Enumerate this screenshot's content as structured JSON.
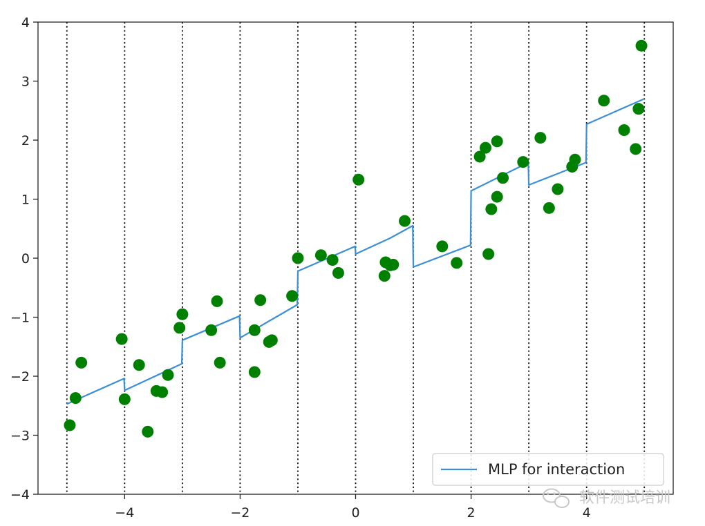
{
  "chart_data": {
    "type": "line+scatter",
    "title": "",
    "xlabel": "",
    "ylabel": "",
    "xlim": [
      -5.5,
      5.5
    ],
    "ylim": [
      -4,
      4
    ],
    "xticks": [
      -4,
      -2,
      0,
      2,
      4
    ],
    "xtick_labels": [
      "−4",
      "−2",
      "0",
      "2",
      "4"
    ],
    "yticks": [
      -4,
      -3,
      -2,
      -1,
      0,
      1,
      2,
      3,
      4
    ],
    "ytick_labels": [
      "−4",
      "−3",
      "−2",
      "−1",
      "0",
      "1",
      "2",
      "3",
      "4"
    ],
    "grid": false,
    "bin_edges": [
      -5,
      -4,
      -3,
      -2,
      -1,
      0,
      1,
      2,
      3,
      4,
      5
    ],
    "bin_edge_style": "dotted black vertical lines",
    "legend": {
      "position": "lower-right",
      "entries": [
        "MLP for interaction"
      ]
    },
    "series": [
      {
        "name": "MLP for interaction",
        "type": "line",
        "color": "#3c8fd6",
        "x": [
          -5.0,
          -4.01,
          -4.0,
          -3.01,
          -3.0,
          -2.01,
          -2.0,
          -1.01,
          -1.0,
          -0.01,
          0.0,
          0.6,
          0.99,
          1.0,
          1.99,
          2.0,
          2.99,
          3.0,
          3.99,
          4.0,
          5.0
        ],
        "y": [
          -2.47,
          -2.04,
          -2.24,
          -1.79,
          -1.39,
          -0.98,
          -1.35,
          -0.79,
          -0.22,
          0.2,
          0.07,
          0.34,
          0.55,
          -0.15,
          0.22,
          1.14,
          1.62,
          1.24,
          1.62,
          2.27,
          2.7
        ]
      },
      {
        "type": "scatter",
        "color": "#008000",
        "points": [
          [
            -4.95,
            -2.83
          ],
          [
            -4.85,
            -2.37
          ],
          [
            -4.75,
            -1.77
          ],
          [
            -4.05,
            -1.37
          ],
          [
            -4.0,
            -2.39
          ],
          [
            -3.75,
            -1.81
          ],
          [
            -3.6,
            -2.94
          ],
          [
            -3.45,
            -2.25
          ],
          [
            -3.35,
            -2.27
          ],
          [
            -3.25,
            -1.98
          ],
          [
            -3.05,
            -1.18
          ],
          [
            -3.0,
            -0.95
          ],
          [
            -2.5,
            -1.22
          ],
          [
            -2.4,
            -0.73
          ],
          [
            -2.35,
            -1.77
          ],
          [
            -1.75,
            -1.22
          ],
          [
            -1.75,
            -1.93
          ],
          [
            -1.65,
            -0.71
          ],
          [
            -1.5,
            -1.42
          ],
          [
            -1.45,
            -1.39
          ],
          [
            -1.1,
            -0.64
          ],
          [
            -1.0,
            0.0
          ],
          [
            -0.6,
            0.05
          ],
          [
            -0.4,
            -0.03
          ],
          [
            -0.3,
            -0.25
          ],
          [
            0.05,
            1.33
          ],
          [
            0.5,
            -0.3
          ],
          [
            0.52,
            -0.07
          ],
          [
            0.6,
            -0.12
          ],
          [
            0.65,
            -0.11
          ],
          [
            0.85,
            0.63
          ],
          [
            1.5,
            0.2
          ],
          [
            1.75,
            -0.08
          ],
          [
            2.15,
            1.72
          ],
          [
            2.25,
            1.87
          ],
          [
            2.3,
            0.07
          ],
          [
            2.35,
            0.83
          ],
          [
            2.45,
            1.98
          ],
          [
            2.45,
            1.04
          ],
          [
            2.55,
            1.36
          ],
          [
            2.9,
            1.63
          ],
          [
            3.2,
            2.04
          ],
          [
            3.35,
            0.85
          ],
          [
            3.5,
            1.17
          ],
          [
            3.75,
            1.55
          ],
          [
            3.8,
            1.67
          ],
          [
            4.3,
            2.67
          ],
          [
            4.65,
            2.17
          ],
          [
            4.85,
            1.85
          ],
          [
            4.9,
            2.53
          ],
          [
            4.95,
            3.6
          ]
        ]
      }
    ]
  },
  "watermark": {
    "text": "软件测试培训",
    "icon": "wechat-icon"
  }
}
